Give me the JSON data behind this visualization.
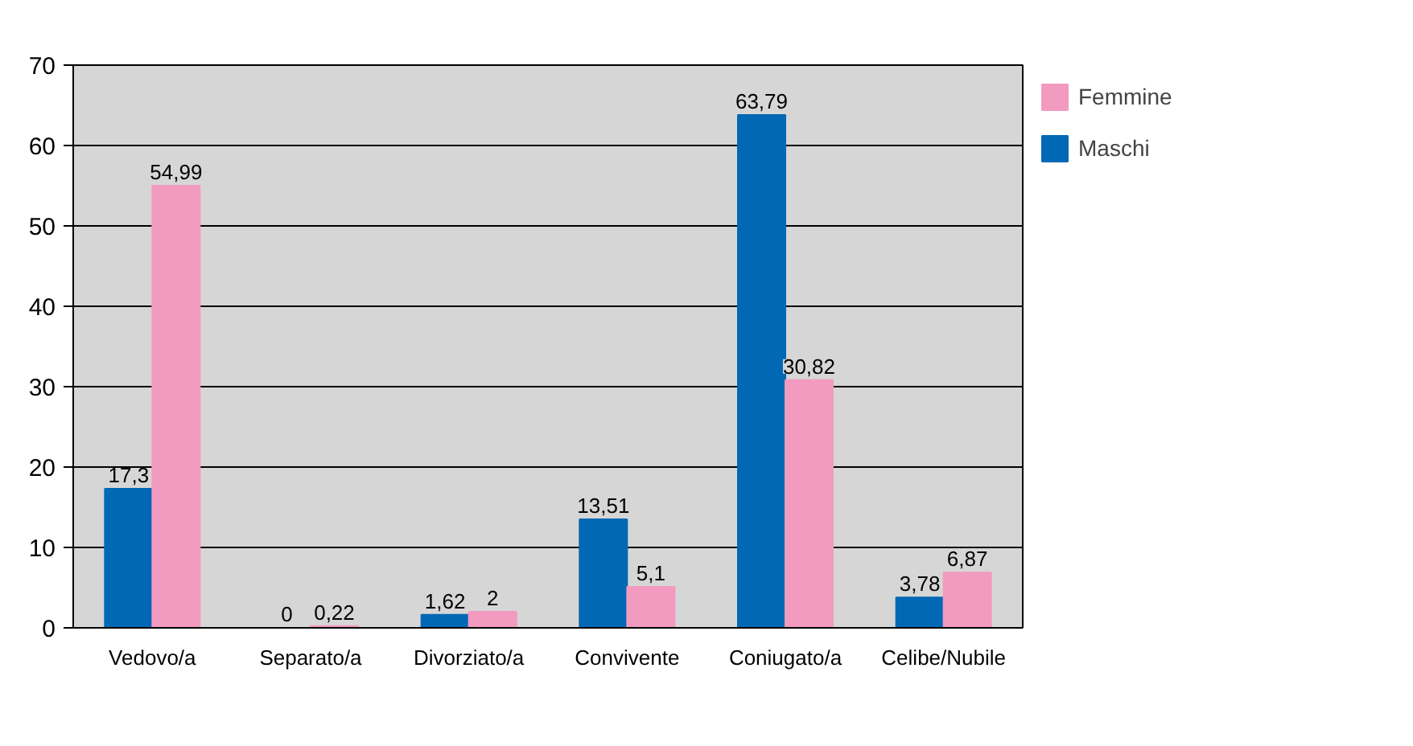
{
  "chart_data": {
    "type": "bar",
    "categories": [
      "Vedovo/a",
      "Separato/a",
      "Divorziato/a",
      "Convivente",
      "Coniugato/a",
      "Celibe/Nubile"
    ],
    "series": [
      {
        "name": "Maschi",
        "color": "#0068b4",
        "values": [
          17.3,
          0,
          1.62,
          13.51,
          63.79,
          3.78
        ],
        "value_labels": [
          "17,3",
          "0",
          "1,62",
          "13,51",
          "63,79",
          "3,78"
        ]
      },
      {
        "name": "Femmine",
        "color": "#f29ac0",
        "values": [
          54.99,
          0.22,
          2,
          5.1,
          30.82,
          6.87
        ],
        "value_labels": [
          "54,99",
          "0,22",
          "2",
          "5,1",
          "30,82",
          "6,87"
        ]
      }
    ],
    "ylim": [
      0,
      70
    ],
    "yticks": [
      0,
      10,
      20,
      30,
      40,
      50,
      60,
      70
    ],
    "grid": "y",
    "legend": "right"
  }
}
